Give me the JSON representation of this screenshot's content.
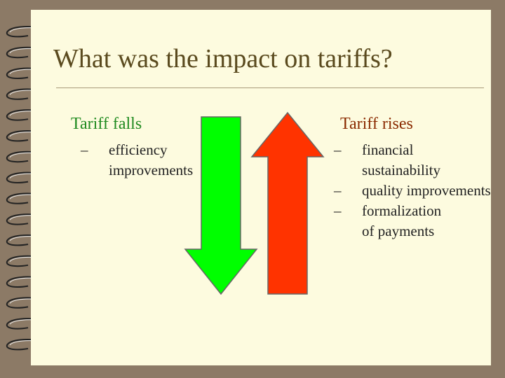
{
  "slide": {
    "title": "What was the impact on tariffs?",
    "left": {
      "heading": "Tariff falls",
      "items": [
        "efficiency\nimprovements"
      ]
    },
    "right": {
      "heading": "Tariff rises",
      "items": [
        "financial\nsustainability",
        "quality   improvements",
        "formalization\nof payments"
      ]
    },
    "dash": "–",
    "colors": {
      "down_arrow": "#00ff00",
      "up_arrow": "#ff3300",
      "title": "#5a4a1e",
      "left_heading": "#1f8a1f",
      "right_heading": "#8a2a00"
    },
    "icons": [
      "spiral-binding-icon",
      "down-arrow-icon",
      "up-arrow-icon"
    ]
  }
}
